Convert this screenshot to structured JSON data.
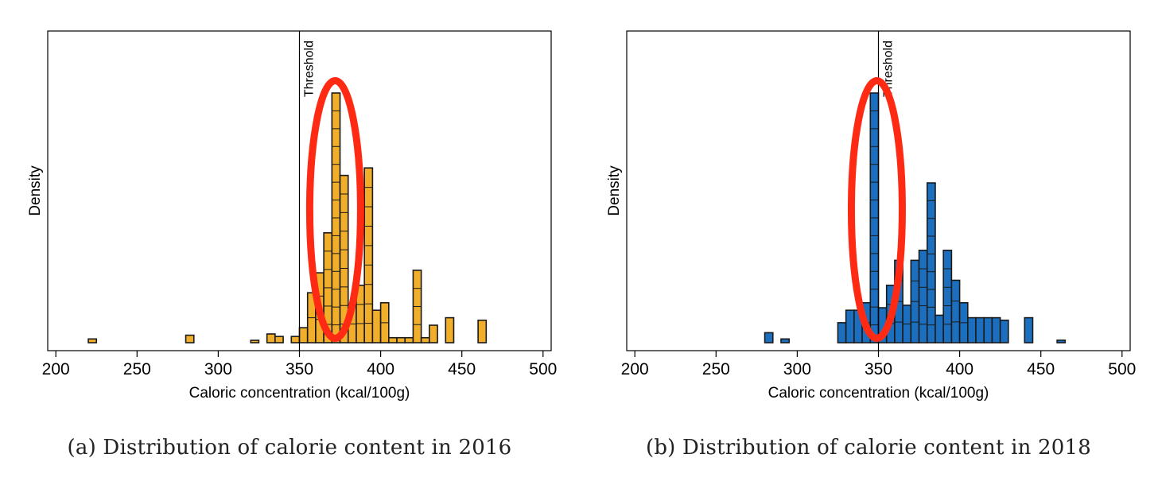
{
  "colors": {
    "highlight": "#ff2a14",
    "panel_a_bar": "#f0ae2b",
    "panel_b_bar": "#1c6fbf"
  },
  "chart_data": [
    {
      "type": "bar",
      "caption": "(a) Distribution of calorie content in 2016",
      "xlabel": "Caloric concentration (kcal/100g)",
      "ylabel": "Density",
      "xlim": [
        195,
        505
      ],
      "ylim": [
        0,
        1
      ],
      "xticks": [
        "200",
        "250",
        "300",
        "350",
        "400",
        "450",
        "500"
      ],
      "bin_width": 5,
      "bar_color": "#f0ae2b",
      "threshold": {
        "value": 350,
        "label": "Threshold"
      },
      "highlight_center_x": 372,
      "bins": [
        {
          "x": 222.5,
          "y": 0.015
        },
        {
          "x": 282.5,
          "y": 0.03
        },
        {
          "x": 322.5,
          "y": 0.005
        },
        {
          "x": 332.5,
          "y": 0.035
        },
        {
          "x": 337.5,
          "y": 0.025
        },
        {
          "x": 347.5,
          "y": 0.025
        },
        {
          "x": 352.5,
          "y": 0.06
        },
        {
          "x": 357.5,
          "y": 0.2
        },
        {
          "x": 362.5,
          "y": 0.28
        },
        {
          "x": 367.5,
          "y": 0.44
        },
        {
          "x": 372.5,
          "y": 1.0
        },
        {
          "x": 377.5,
          "y": 0.67
        },
        {
          "x": 382.5,
          "y": 0.15
        },
        {
          "x": 387.5,
          "y": 0.23
        },
        {
          "x": 392.5,
          "y": 0.7
        },
        {
          "x": 397.5,
          "y": 0.13
        },
        {
          "x": 402.5,
          "y": 0.16
        },
        {
          "x": 407.5,
          "y": 0.02
        },
        {
          "x": 412.5,
          "y": 0.02
        },
        {
          "x": 417.5,
          "y": 0.02
        },
        {
          "x": 422.5,
          "y": 0.29
        },
        {
          "x": 427.5,
          "y": 0.02
        },
        {
          "x": 432.5,
          "y": 0.07
        },
        {
          "x": 442.5,
          "y": 0.1
        },
        {
          "x": 462.5,
          "y": 0.09
        }
      ]
    },
    {
      "type": "bar",
      "caption": "(b) Distribution of calorie content in 2018",
      "xlabel": "Caloric concentration (kcal/100g)",
      "ylabel": "Density",
      "xlim": [
        195,
        505
      ],
      "ylim": [
        0,
        1
      ],
      "xticks": [
        "200",
        "250",
        "300",
        "350",
        "400",
        "450",
        "500"
      ],
      "bin_width": 5,
      "bar_color": "#1c6fbf",
      "threshold": {
        "value": 350,
        "label": "Threshold"
      },
      "highlight_center_x": 349,
      "bins": [
        {
          "x": 282.5,
          "y": 0.04
        },
        {
          "x": 292.5,
          "y": 0.015
        },
        {
          "x": 327.5,
          "y": 0.08
        },
        {
          "x": 332.5,
          "y": 0.13
        },
        {
          "x": 337.5,
          "y": 0.13
        },
        {
          "x": 342.5,
          "y": 0.16
        },
        {
          "x": 347.5,
          "y": 1.0
        },
        {
          "x": 352.5,
          "y": 0.14
        },
        {
          "x": 357.5,
          "y": 0.23
        },
        {
          "x": 362.5,
          "y": 0.33
        },
        {
          "x": 367.5,
          "y": 0.15
        },
        {
          "x": 372.5,
          "y": 0.33
        },
        {
          "x": 377.5,
          "y": 0.37
        },
        {
          "x": 382.5,
          "y": 0.64
        },
        {
          "x": 387.5,
          "y": 0.11
        },
        {
          "x": 392.5,
          "y": 0.37
        },
        {
          "x": 397.5,
          "y": 0.25
        },
        {
          "x": 402.5,
          "y": 0.16
        },
        {
          "x": 407.5,
          "y": 0.1
        },
        {
          "x": 412.5,
          "y": 0.1
        },
        {
          "x": 417.5,
          "y": 0.1
        },
        {
          "x": 422.5,
          "y": 0.1
        },
        {
          "x": 427.5,
          "y": 0.09
        },
        {
          "x": 442.5,
          "y": 0.1
        },
        {
          "x": 462.5,
          "y": 0.01
        }
      ]
    }
  ]
}
